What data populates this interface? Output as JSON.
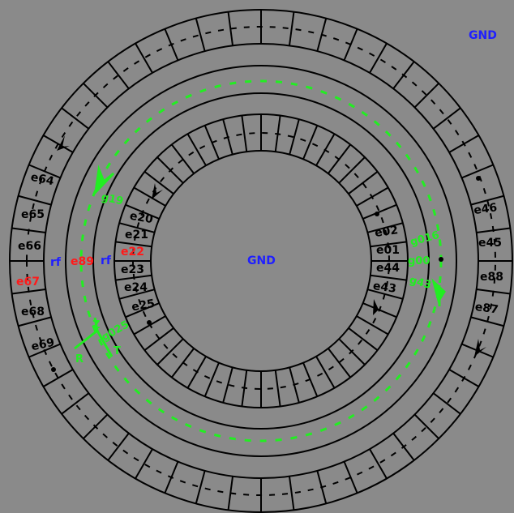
{
  "labels": {
    "gnd_corner": "GND",
    "gnd_center": "GND",
    "rf_left": "rf",
    "rf_right": "rf",
    "e89": "e89",
    "e22": "e22",
    "e67": "e67"
  },
  "outer_electrodes": [
    "e64",
    "e65",
    "e66",
    "e68",
    "e69",
    "e46",
    "e45",
    "e88",
    "e87"
  ],
  "inner_electrodes": [
    "e20",
    "e21",
    "e23",
    "e24",
    "e25",
    "e02",
    "e01",
    "e44",
    "e43"
  ],
  "green_labels": [
    "g19",
    "g016",
    "g00",
    "g43",
    "g025",
    "Z",
    "R",
    "T"
  ],
  "colors": {
    "background": "#8a8a8a",
    "lines": "#000000",
    "highlight_red": "#ff1a1a",
    "rf_blue": "#1f1fff",
    "beam_green": "#22ee22"
  }
}
